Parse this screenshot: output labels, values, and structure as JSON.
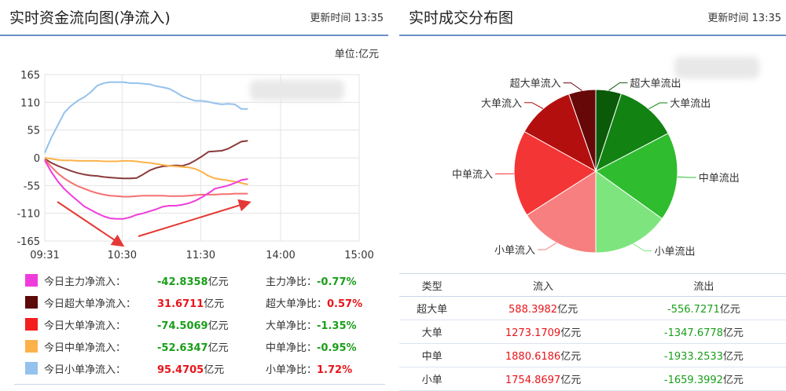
{
  "left": {
    "title": "实时资金流向图(净流入)",
    "update_time": "更新时间 13:35",
    "unit": "单位:亿元",
    "legend": [
      {
        "name": "今日主力净流入：",
        "value": "-42.8358",
        "unit": "亿元",
        "ratio_label": "主力净比：",
        "ratio": "-0.77%",
        "color": "#f03cdc",
        "direction": "down"
      },
      {
        "name": "今日超大单净流入：",
        "value": "31.6711",
        "unit": "亿元",
        "ratio_label": "超大单净比：",
        "ratio": "0.57%",
        "color": "#5c0a0a",
        "direction": "up"
      },
      {
        "name": "今日大单净流入：",
        "value": "-74.5069",
        "unit": "亿元",
        "ratio_label": "大单净比：",
        "ratio": "-1.35%",
        "color": "#f51e1e",
        "direction": "down"
      },
      {
        "name": "今日中单净流入：",
        "value": "-52.6347",
        "unit": "亿元",
        "ratio_label": "中单净比：",
        "ratio": "-0.95%",
        "color": "#fcb24a",
        "direction": "down"
      },
      {
        "name": "今日小单净流入：",
        "value": "95.4705",
        "unit": "亿元",
        "ratio_label": "小单净比：",
        "ratio": "1.72%",
        "color": "#94c2ec",
        "direction": "up"
      }
    ]
  },
  "right": {
    "title": "实时成交分布图",
    "update_time": "更新时间 13:35",
    "table": {
      "headers": [
        "类型",
        "流入",
        "流出"
      ],
      "unit": "亿元",
      "rows": [
        {
          "type": "超大单",
          "in": "588.3982",
          "out": "-556.7271"
        },
        {
          "type": "大单",
          "in": "1273.1709",
          "out": "-1347.6778"
        },
        {
          "type": "中单",
          "in": "1880.6186",
          "out": "-1933.2533"
        },
        {
          "type": "小单",
          "in": "1754.8697",
          "out": "-1659.3992"
        }
      ]
    }
  },
  "chart_data": [
    {
      "type": "line",
      "title": "实时资金流向图(净流入)",
      "ylabel": "",
      "xlabel": "",
      "unit": "亿元",
      "ylim": [
        -165,
        165
      ],
      "y_ticks": [
        165,
        110,
        55,
        0,
        -55,
        -110,
        -165
      ],
      "x_ticks": [
        "09:31",
        "10:30",
        "11:30",
        "14:00",
        "15:00"
      ],
      "x_ticks_min": [
        0,
        59,
        119,
        180,
        240
      ],
      "xlim_min": [
        0,
        240
      ],
      "grid": true,
      "series": [
        {
          "key": "small",
          "color": "#94c2ec",
          "x_min": [
            0,
            5,
            10,
            15,
            20,
            25,
            30,
            35,
            40,
            45,
            50,
            55,
            60,
            65,
            70,
            75,
            80,
            85,
            90,
            95,
            100,
            105,
            110,
            115,
            120,
            125,
            130,
            135,
            140,
            145,
            150,
            155
          ],
          "values": [
            10,
            40,
            65,
            90,
            103,
            113,
            120,
            130,
            143,
            148,
            150,
            150,
            150,
            148,
            148,
            147,
            146,
            142,
            140,
            137,
            130,
            122,
            117,
            113,
            113,
            111,
            108,
            106,
            107,
            106,
            97,
            97
          ]
        },
        {
          "key": "super",
          "color": "#8b3a3a",
          "x_min": [
            0,
            5,
            10,
            15,
            20,
            25,
            30,
            35,
            40,
            45,
            50,
            55,
            60,
            65,
            70,
            75,
            80,
            85,
            90,
            95,
            100,
            105,
            110,
            115,
            120,
            125,
            130,
            135,
            140,
            145,
            150,
            155
          ],
          "values": [
            -2,
            -10,
            -16,
            -21,
            -26,
            -30,
            -33,
            -35,
            -36,
            -38,
            -39,
            -40,
            -41,
            -41,
            -40,
            -33,
            -25,
            -20,
            -17,
            -16,
            -15,
            -16,
            -12,
            -5,
            3,
            12,
            13,
            14,
            18,
            25,
            32,
            34
          ]
        },
        {
          "key": "mid",
          "color": "#fcb24a",
          "x_min": [
            0,
            5,
            10,
            15,
            20,
            25,
            30,
            35,
            40,
            45,
            50,
            55,
            60,
            65,
            70,
            75,
            80,
            85,
            90,
            95,
            100,
            105,
            110,
            115,
            120,
            125,
            130,
            135,
            140,
            145,
            150,
            155
          ],
          "values": [
            0,
            -2,
            -4,
            -5,
            -5,
            -6,
            -6,
            -6,
            -6,
            -7,
            -7,
            -7,
            -6,
            -6,
            -7,
            -9,
            -10,
            -12,
            -14,
            -16,
            -17,
            -18,
            -19,
            -22,
            -28,
            -36,
            -41,
            -43,
            -45,
            -47,
            -50,
            -53
          ]
        },
        {
          "key": "large",
          "color": "#f57070",
          "x_min": [
            0,
            5,
            10,
            15,
            20,
            25,
            30,
            35,
            40,
            45,
            50,
            55,
            60,
            65,
            70,
            75,
            80,
            85,
            90,
            95,
            100,
            105,
            110,
            115,
            120,
            125,
            130,
            135,
            140,
            145,
            150,
            155
          ],
          "values": [
            -3,
            -18,
            -31,
            -41,
            -49,
            -56,
            -61,
            -66,
            -70,
            -73,
            -75,
            -76,
            -77,
            -77,
            -76,
            -75,
            -75,
            -75,
            -75,
            -76,
            -76,
            -76,
            -75,
            -74,
            -73,
            -73,
            -73,
            -72,
            -72,
            -71,
            -71,
            -71
          ]
        },
        {
          "key": "main",
          "color": "#f03cdc",
          "x_min": [
            0,
            5,
            10,
            15,
            20,
            25,
            30,
            35,
            40,
            45,
            50,
            55,
            60,
            65,
            70,
            75,
            80,
            85,
            90,
            95,
            100,
            105,
            110,
            115,
            120,
            125,
            130,
            135,
            140,
            145,
            150,
            155
          ],
          "values": [
            -5,
            -28,
            -47,
            -62,
            -74,
            -85,
            -96,
            -103,
            -110,
            -116,
            -120,
            -121,
            -121,
            -118,
            -113,
            -110,
            -106,
            -102,
            -97,
            -95,
            -95,
            -93,
            -90,
            -85,
            -78,
            -70,
            -61,
            -58,
            -55,
            -50,
            -44,
            -42
          ]
        }
      ]
    },
    {
      "type": "pie",
      "title": "实时成交分布图",
      "slices": [
        {
          "label": "超大单流出",
          "value": 556.7271,
          "color": "#0a5a0a"
        },
        {
          "label": "大单流出",
          "value": 1347.6778,
          "color": "#128212"
        },
        {
          "label": "中单流出",
          "value": 1933.2533,
          "color": "#2fbc2f"
        },
        {
          "label": "小单流出",
          "value": 1659.3992,
          "color": "#7ee57e"
        },
        {
          "label": "小单流入",
          "value": 1754.8697,
          "color": "#f77f7f"
        },
        {
          "label": "中单流入",
          "value": 1880.6186,
          "color": "#f43535"
        },
        {
          "label": "大单流入",
          "value": 1273.1709,
          "color": "#b40f0f"
        },
        {
          "label": "超大单流入",
          "value": 588.3982,
          "color": "#660808"
        }
      ]
    }
  ]
}
